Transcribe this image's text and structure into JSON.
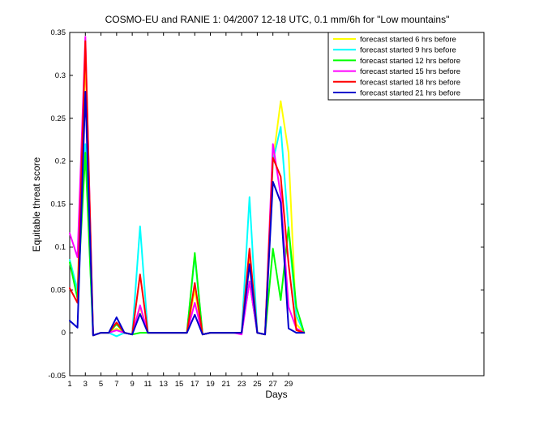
{
  "chart_data": {
    "type": "line",
    "title": "COSMO-EU and RANIE 1: 04/2007 12-18 UTC, 0.1 mm/6h for \"Low mountains\"",
    "xlabel": "Days",
    "ylabel": "Equitable threat score",
    "xlim": [
      1,
      54
    ],
    "ylim": [
      -0.05,
      0.35
    ],
    "xticks": [
      1,
      3,
      5,
      7,
      9,
      11,
      13,
      15,
      17,
      19,
      21,
      23,
      25,
      27,
      29
    ],
    "xtick_labels": [
      "1",
      "3",
      "5",
      "7",
      "9",
      "11",
      "13",
      "15",
      "17",
      "19",
      "21",
      "23",
      "25",
      "27",
      "29"
    ],
    "yticks": [
      -0.05,
      0,
      0.05,
      0.1,
      0.15,
      0.2,
      0.25,
      0.3,
      0.35
    ],
    "ytick_labels": [
      "-0.05",
      "0",
      "0.05",
      "0.1",
      "0.15",
      "0.2",
      "0.25",
      "0.3",
      "0.35"
    ],
    "grid": false,
    "legend_position": "top-right",
    "x": [
      1,
      2,
      3,
      4,
      5,
      6,
      7,
      8,
      9,
      10,
      11,
      12,
      13,
      14,
      15,
      16,
      17,
      18,
      19,
      20,
      21,
      22,
      23,
      24,
      25,
      26,
      27,
      28,
      29,
      30,
      31
    ],
    "series": [
      {
        "name": "forecast started  6 hrs before",
        "color": "#ffff00",
        "values": [
          0.085,
          0.05,
          0.32,
          -0.003,
          0,
          0,
          0.005,
          0,
          -0.002,
          0.03,
          0,
          0,
          0,
          0,
          0,
          0,
          0.05,
          -0.002,
          0,
          0,
          0,
          0,
          0,
          0.09,
          0,
          -0.002,
          0.2,
          0.27,
          0.21,
          0.01,
          0
        ]
      },
      {
        "name": "forecast started  9 hrs before",
        "color": "#00ffff",
        "values": [
          0.085,
          0.05,
          0.22,
          -0.003,
          0,
          0,
          -0.004,
          0,
          -0.002,
          0.124,
          0,
          0,
          0,
          0,
          0,
          0,
          0.09,
          -0.002,
          0,
          0,
          0,
          0,
          0,
          0.158,
          0,
          -0.002,
          0.2,
          0.24,
          0.12,
          0.02,
          0
        ]
      },
      {
        "name": "forecast started 12 hrs before",
        "color": "#00ff00",
        "values": [
          0.082,
          0.04,
          0.21,
          -0.003,
          0,
          0,
          0.01,
          0,
          -0.002,
          0,
          0,
          0,
          0,
          0,
          0,
          0,
          0.093,
          -0.002,
          0,
          0,
          0,
          0,
          0,
          0.06,
          0,
          -0.002,
          0.098,
          0.038,
          0.123,
          0.03,
          0
        ]
      },
      {
        "name": "forecast started 15 hrs before",
        "color": "#ff00ff",
        "values": [
          0.116,
          0.088,
          0.345,
          -0.003,
          0,
          0,
          0.003,
          0,
          -0.002,
          0.032,
          0,
          0,
          0,
          0,
          0,
          0,
          0.035,
          -0.002,
          0,
          0,
          0,
          0,
          -0.002,
          0.06,
          0,
          -0.002,
          0.22,
          0.16,
          0.03,
          0.005,
          0
        ]
      },
      {
        "name": "forecast started 18 hrs before",
        "color": "#ff0000",
        "values": [
          0.052,
          0.035,
          0.34,
          -0.003,
          0,
          0,
          0.012,
          0,
          -0.002,
          0.068,
          0,
          0,
          0,
          0,
          0,
          0,
          0.058,
          -0.002,
          0,
          0,
          0,
          0,
          0,
          0.098,
          0,
          -0.002,
          0.204,
          0.182,
          0.08,
          0.003,
          0
        ]
      },
      {
        "name": "forecast started 21 hrs before",
        "color": "#0000cc",
        "values": [
          0.014,
          0.006,
          0.281,
          -0.003,
          0,
          0,
          0.018,
          0,
          -0.002,
          0.022,
          0,
          0,
          0,
          0,
          0,
          0,
          0.021,
          -0.002,
          0,
          0,
          0,
          0,
          0,
          0.08,
          0,
          -0.002,
          0.176,
          0.152,
          0.005,
          0,
          0
        ]
      }
    ]
  }
}
